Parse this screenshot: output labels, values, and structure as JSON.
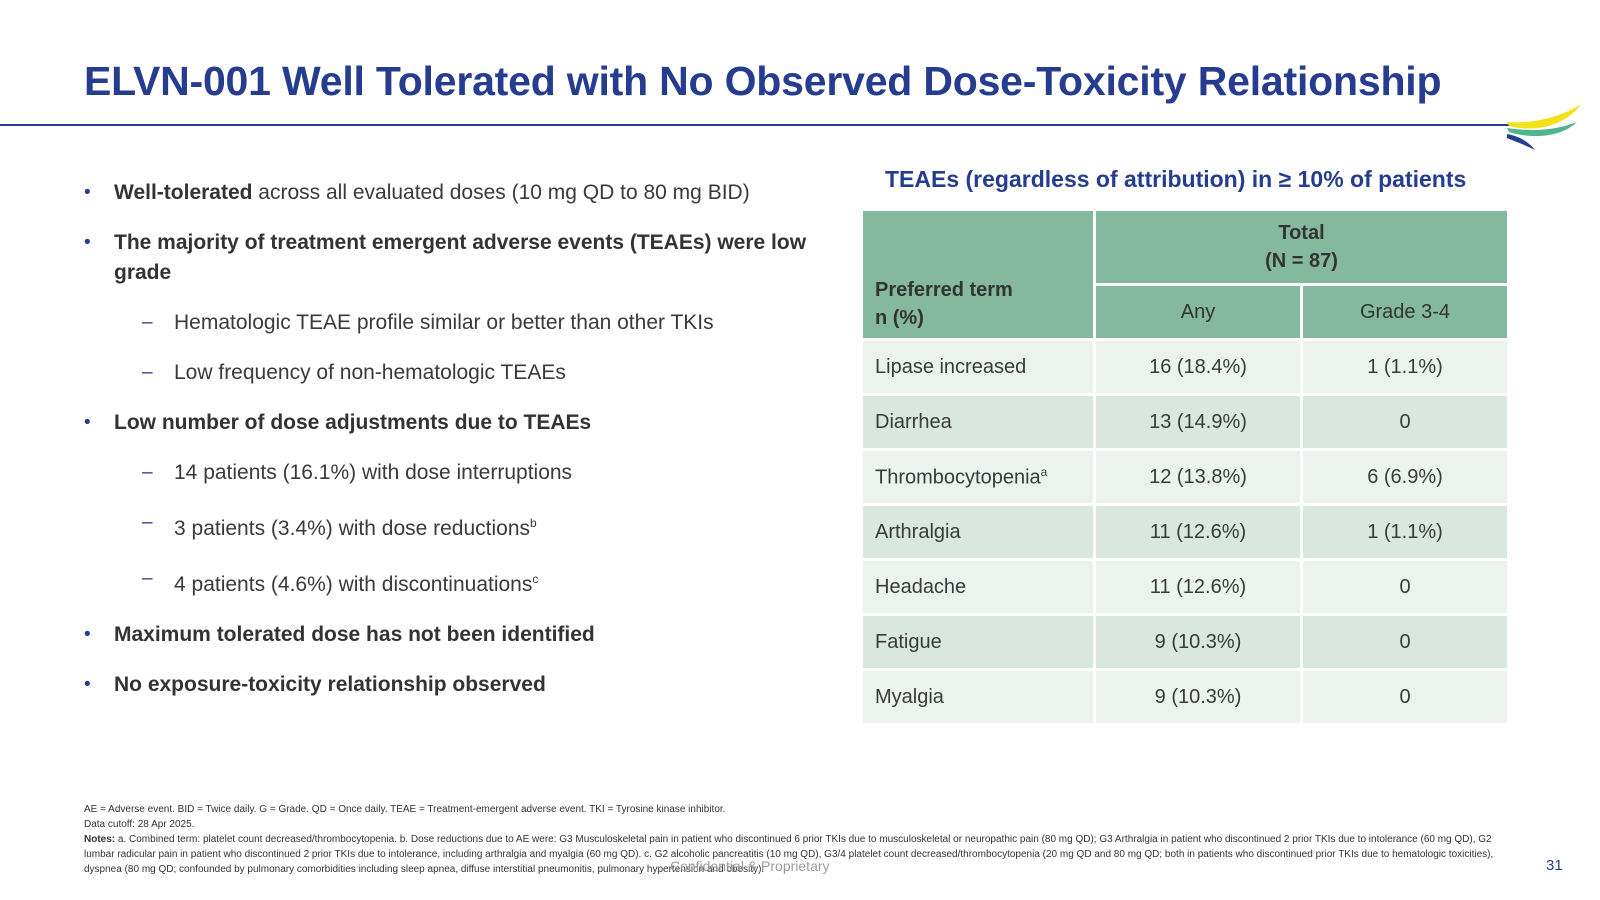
{
  "title": "ELVN-001 Well Tolerated with No Observed Dose-Toxicity Relationship",
  "bullets": [
    {
      "level": 1,
      "bold": "Well-tolerated",
      "text": " across all evaluated doses (10 mg QD to 80 mg BID)",
      "sup": ""
    },
    {
      "level": 1,
      "bold": "The majority of treatment emergent adverse events (TEAEs) were low grade",
      "text": "",
      "sup": ""
    },
    {
      "level": 2,
      "bold": "",
      "text": "Hematologic TEAE profile similar or better than other TKIs",
      "sup": ""
    },
    {
      "level": 2,
      "bold": "",
      "text": "Low frequency of non-hematologic TEAEs",
      "sup": ""
    },
    {
      "level": 1,
      "bold": "Low number of dose adjustments due to TEAEs",
      "text": "",
      "sup": ""
    },
    {
      "level": 2,
      "bold": "",
      "text": "14 patients (16.1%) with dose interruptions",
      "sup": ""
    },
    {
      "level": 2,
      "bold": "",
      "text": "3 patients (3.4%) with dose reductions",
      "sup": "b"
    },
    {
      "level": 2,
      "bold": "",
      "text": "4 patients (4.6%) with discontinuations",
      "sup": "c"
    },
    {
      "level": 1,
      "bold": "Maximum tolerated dose has not been identified",
      "text": "",
      "sup": ""
    },
    {
      "level": 1,
      "bold": "No exposure-toxicity relationship observed",
      "text": "",
      "sup": ""
    }
  ],
  "table": {
    "title": "TEAEs (regardless of attribution) in ≥ 10% of patients",
    "header_term_line1": "Preferred term",
    "header_term_line2": "n (%)",
    "header_total_line1": "Total",
    "header_total_line2": "(N = 87)",
    "header_any": "Any",
    "header_grade": "Grade 3-4",
    "rows": [
      {
        "term": "Lipase increased",
        "sup": "",
        "any": "16 (18.4%)",
        "grade": "1 (1.1%)"
      },
      {
        "term": "Diarrhea",
        "sup": "",
        "any": "13 (14.9%)",
        "grade": "0"
      },
      {
        "term": "Thrombocytopenia",
        "sup": "a",
        "any": "12 (13.8%)",
        "grade": "6 (6.9%)"
      },
      {
        "term": "Arthralgia",
        "sup": "",
        "any": "11 (12.6%)",
        "grade": "1 (1.1%)"
      },
      {
        "term": "Headache",
        "sup": "",
        "any": "11 (12.6%)",
        "grade": "0"
      },
      {
        "term": "Fatigue",
        "sup": "",
        "any": "9 (10.3%)",
        "grade": "0"
      },
      {
        "term": "Myalgia",
        "sup": "",
        "any": "9 (10.3%)",
        "grade": "0"
      }
    ]
  },
  "footnotes": {
    "abbreviations": "AE = Adverse event. BID = Twice daily. G = Grade. QD = Once daily. TEAE = Treatment-emergent adverse event. TKI = Tyrosine kinase inhibitor.",
    "cutoff": "Data cutoff: 28 Apr 2025.",
    "notes_label": "Notes:",
    "notes_text": " a. Combined term: platelet count decreased/thrombocytopenia. b. Dose reductions due to AE were: G3 Musculoskeletal pain in patient who discontinued 6 prior TKIs due to musculoskeletal or neuropathic pain (80 mg QD); G3 Arthralgia in patient who discontinued 2 prior TKIs due to intolerance (60 mg QD), G2 lumbar radicular pain in patient who discontinued 2 prior TKIs due to intolerance, including arthralgia and myalgia (60 mg QD). c. G2 alcoholic pancreatitis (10 mg QD), G3/4 platelet count decreased/thrombocytopenia (20 mg QD and 80 mg QD; both in patients who discontinued prior TKIs due to hematologic toxicities), dyspnea (80 mg QD; confounded by pulmonary comorbidities including sleep apnea, diffuse interstitial pneumonitis, pulmonary hypertension and obesity)."
  },
  "confidential": "Confidential & Proprietary",
  "page_number": "31",
  "colors": {
    "title": "#263d8f",
    "table_header": "#84b89f",
    "row_light": "#ecf3ef",
    "row_dark": "#d8e8df",
    "logo_yellow": "#f2e11c",
    "logo_green": "#4fb58c",
    "logo_blue": "#263d8f"
  },
  "icons": {
    "logo": "company-swoosh-logo"
  }
}
